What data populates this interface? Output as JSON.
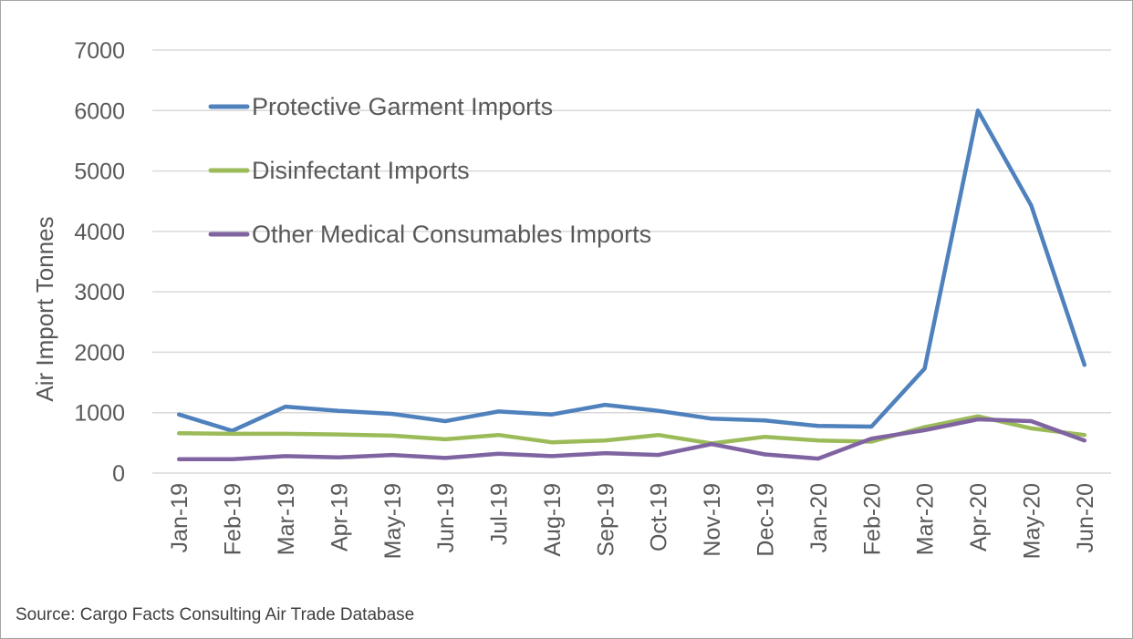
{
  "chart_data": {
    "type": "line",
    "title": "",
    "xlabel": "",
    "ylabel": "Air Import Tonnes",
    "ylim": [
      0,
      7000
    ],
    "yticks": [
      0,
      1000,
      2000,
      3000,
      4000,
      5000,
      6000,
      7000
    ],
    "grid": true,
    "legend_position": "top-left",
    "categories": [
      "Jan-19",
      "Feb-19",
      "Mar-19",
      "Apr-19",
      "May-19",
      "Jun-19",
      "Jul-19",
      "Aug-19",
      "Sep-19",
      "Oct-19",
      "Nov-19",
      "Dec-19",
      "Jan-20",
      "Feb-20",
      "Mar-20",
      "Apr-20",
      "May-20",
      "Jun-20"
    ],
    "series": [
      {
        "name": "Protective Garment Imports",
        "color": "#4f81bd",
        "values": [
          970,
          700,
          1100,
          1030,
          980,
          860,
          1020,
          970,
          1130,
          1030,
          900,
          870,
          780,
          770,
          1730,
          6000,
          4430,
          1790
        ]
      },
      {
        "name": "Disinfectant Imports",
        "color": "#9bbb59",
        "values": [
          660,
          650,
          650,
          640,
          620,
          560,
          630,
          510,
          540,
          630,
          490,
          600,
          540,
          520,
          760,
          940,
          740,
          630
        ]
      },
      {
        "name": "Other Medical Consumables Imports",
        "color": "#8064a2",
        "values": [
          230,
          230,
          280,
          260,
          300,
          250,
          320,
          280,
          330,
          300,
          480,
          310,
          240,
          570,
          710,
          890,
          860,
          540
        ]
      }
    ]
  },
  "source_note": "Source: Cargo Facts Consulting Air Trade Database"
}
